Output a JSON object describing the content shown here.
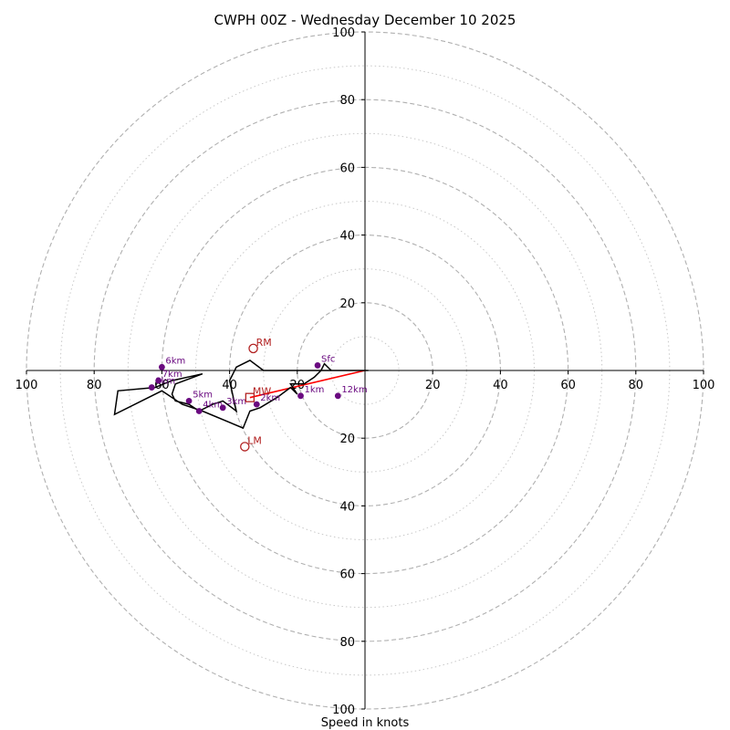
{
  "chart_data": {
    "type": "hodograph",
    "title": "CWPH 00Z - Wednesday December 10 2025",
    "xlabel": "Speed in knots",
    "max_speed_kt": 100,
    "ring_major_kt": [
      20,
      40,
      60,
      80,
      100
    ],
    "ring_minor_kt": [
      10,
      30,
      50,
      70,
      90
    ],
    "axis_tick_values": [
      20,
      40,
      60,
      80,
      100
    ],
    "axis_tick_labels": [
      "20",
      "40",
      "60",
      "80",
      "100"
    ],
    "colors": {
      "profile": "#000000",
      "levels": "#6a0a80",
      "storm": "#b22222",
      "shear": "#ff0000",
      "grid": "#b0b0b0"
    },
    "hodograph_line": [
      [
        1,
        0
      ],
      [
        -10,
        0
      ],
      [
        -20,
        0
      ],
      [
        -30,
        0
      ],
      [
        -34,
        3
      ],
      [
        -38,
        1
      ],
      [
        -40,
        -3
      ],
      [
        -38,
        -12
      ],
      [
        -42,
        -9
      ],
      [
        -45,
        -10
      ],
      [
        -49,
        -12
      ],
      [
        -52,
        -10
      ],
      [
        -56,
        -9
      ],
      [
        -57,
        -7
      ],
      [
        -56,
        -4
      ],
      [
        -48,
        -1
      ],
      [
        -57,
        -3
      ],
      [
        -62,
        -5
      ],
      [
        -73,
        -6
      ],
      [
        -74,
        -13
      ],
      [
        -60,
        -6
      ],
      [
        -54,
        -10
      ],
      [
        -48,
        -12
      ],
      [
        -36,
        -17
      ],
      [
        -34,
        -12
      ],
      [
        -31,
        -11
      ],
      [
        -26,
        -8
      ],
      [
        -22,
        -5
      ],
      [
        -20,
        -7
      ],
      [
        -22,
        -4
      ],
      [
        -18,
        -4
      ],
      [
        -15,
        -2
      ],
      [
        -13,
        0
      ],
      [
        -12,
        2
      ],
      [
        -10,
        0
      ]
    ],
    "height_points": [
      {
        "label": "Sfc",
        "u": -14,
        "v": 1.5
      },
      {
        "label": "1km",
        "u": -19,
        "v": -7.5
      },
      {
        "label": "12km",
        "u": -8,
        "v": -7.5
      },
      {
        "label": "2km",
        "u": -32,
        "v": -10
      },
      {
        "label": "3km",
        "u": -42,
        "v": -11
      },
      {
        "label": "4km",
        "u": -49,
        "v": -12
      },
      {
        "label": "5km",
        "u": -52,
        "v": -9
      },
      {
        "label": "6km",
        "u": -60,
        "v": 1
      },
      {
        "label": "7km",
        "u": -61,
        "v": -3
      },
      {
        "label": "8km",
        "u": -63,
        "v": -5
      }
    ],
    "storm_motion": [
      {
        "label": "RM",
        "u": -33,
        "v": 6.5,
        "marker": "circle"
      },
      {
        "label": "LM",
        "u": -35.5,
        "v": -22.5,
        "marker": "circle"
      },
      {
        "label": "MW",
        "u": -34,
        "v": -8,
        "marker": "square"
      }
    ],
    "shear_vector": {
      "from": [
        0,
        0
      ],
      "to": [
        -34,
        -8
      ]
    }
  }
}
